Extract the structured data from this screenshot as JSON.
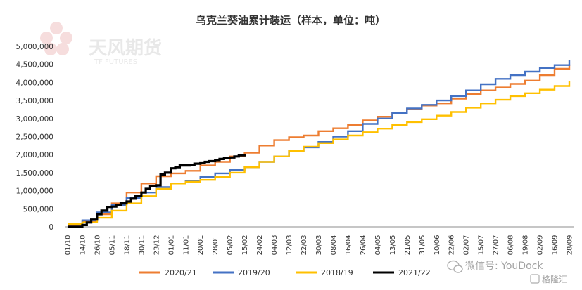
{
  "watermark": {
    "logo_cn": "天风期货",
    "logo_en": "TF FUTURES",
    "bottom_wechat": "微信号: YouDock",
    "bottom_brand": "格隆汇"
  },
  "chart_data": {
    "type": "line",
    "title": "乌克兰葵油累计装运（样本，单位：吨）",
    "xlabel": "",
    "ylabel": "",
    "ylim": [
      0,
      5000000
    ],
    "yticks": [
      0,
      500000,
      1000000,
      1500000,
      2000000,
      2500000,
      3000000,
      3500000,
      4000000,
      4500000,
      5000000
    ],
    "ytick_labels": [
      "0",
      "500,000",
      "1,000,000",
      "1,500,000",
      "2,000,000",
      "2,500,000",
      "3,000,000",
      "3,500,000",
      "4,000,000",
      "4,500,000",
      "5,000,000"
    ],
    "x_tick_labels": [
      "01/10",
      "14/10",
      "26/10",
      "05/11",
      "18/11",
      "30/11",
      "23/12",
      "01/01",
      "11/01",
      "20/01",
      "28/01",
      "05/02",
      "15/02",
      "24/02",
      "04/03",
      "12/03",
      "22/03",
      "30/03",
      "08/04",
      "16/04",
      "26/04",
      "04/05",
      "13/05",
      "21/05",
      "31/05",
      "10/06",
      "22/06",
      "02/07",
      "15/07",
      "27/07",
      "06/08",
      "19/08",
      "02/09",
      "16/09",
      "28/09"
    ],
    "grid": false,
    "legend_position": "bottom",
    "series": [
      {
        "name": "2020/21",
        "color": "#ED7D31",
        "x": [
          0,
          1,
          2,
          3,
          4,
          5,
          6,
          7,
          8,
          9,
          10,
          11,
          12,
          13,
          14,
          15,
          16,
          17,
          18,
          19,
          20,
          21,
          22,
          23,
          24,
          25,
          26,
          27,
          28,
          29,
          30,
          31,
          32,
          33,
          34
        ],
        "values": [
          50000,
          150000,
          350000,
          650000,
          950000,
          1200000,
          1400000,
          1480000,
          1550000,
          1700000,
          1800000,
          1950000,
          2050000,
          2250000,
          2400000,
          2480000,
          2530000,
          2650000,
          2730000,
          2820000,
          2950000,
          3050000,
          3150000,
          3270000,
          3360000,
          3420000,
          3550000,
          3680000,
          3780000,
          3860000,
          3960000,
          4050000,
          4200000,
          4380000,
          4500000
        ]
      },
      {
        "name": "2019/20",
        "color": "#4472C4",
        "x": [
          0,
          1,
          2,
          3,
          4,
          5,
          6,
          7,
          8,
          9,
          10,
          11,
          12,
          13,
          14,
          15,
          16,
          17,
          18,
          19,
          20,
          21,
          22,
          23,
          24,
          25,
          26,
          27,
          28,
          29,
          30,
          31,
          32,
          33,
          34
        ],
        "values": [
          60000,
          180000,
          400000,
          600000,
          800000,
          950000,
          1100000,
          1200000,
          1280000,
          1380000,
          1480000,
          1580000,
          1650000,
          1800000,
          1950000,
          2100000,
          2200000,
          2350000,
          2500000,
          2650000,
          2850000,
          3000000,
          3150000,
          3280000,
          3380000,
          3500000,
          3620000,
          3780000,
          3950000,
          4100000,
          4200000,
          4300000,
          4400000,
          4480000,
          4620000
        ]
      },
      {
        "name": "2018/19",
        "color": "#FFC000",
        "x": [
          0,
          1,
          2,
          3,
          4,
          5,
          6,
          7,
          8,
          9,
          10,
          11,
          12,
          13,
          14,
          15,
          16,
          17,
          18,
          19,
          20,
          21,
          22,
          23,
          24,
          25,
          26,
          27,
          28,
          29,
          30,
          31,
          32,
          33,
          34
        ],
        "values": [
          80000,
          120000,
          250000,
          450000,
          650000,
          850000,
          1050000,
          1200000,
          1250000,
          1300000,
          1380000,
          1500000,
          1650000,
          1800000,
          1950000,
          2100000,
          2220000,
          2320000,
          2420000,
          2530000,
          2620000,
          2720000,
          2820000,
          2900000,
          2980000,
          3080000,
          3180000,
          3300000,
          3420000,
          3520000,
          3620000,
          3700000,
          3800000,
          3900000,
          4030000
        ]
      },
      {
        "name": "2021/22",
        "color": "#000000",
        "x": [
          0,
          0.5,
          1,
          1.3,
          1.6,
          2,
          2.3,
          2.7,
          3,
          3.3,
          3.6,
          4,
          4.3,
          4.6,
          5,
          5.3,
          5.6,
          6,
          6.3,
          6.6,
          7,
          7.3,
          7.6,
          8,
          8.3,
          8.6,
          9,
          9.3,
          9.6,
          10,
          10.3,
          10.6,
          11,
          11.3,
          11.6,
          12
        ],
        "values": [
          0,
          0,
          50000,
          120000,
          200000,
          350000,
          450000,
          550000,
          560000,
          600000,
          650000,
          700000,
          780000,
          850000,
          950000,
          1050000,
          1120000,
          1150000,
          1450000,
          1500000,
          1620000,
          1650000,
          1700000,
          1700000,
          1720000,
          1750000,
          1780000,
          1800000,
          1820000,
          1850000,
          1880000,
          1900000,
          1920000,
          1950000,
          1980000,
          2020000
        ]
      }
    ]
  }
}
